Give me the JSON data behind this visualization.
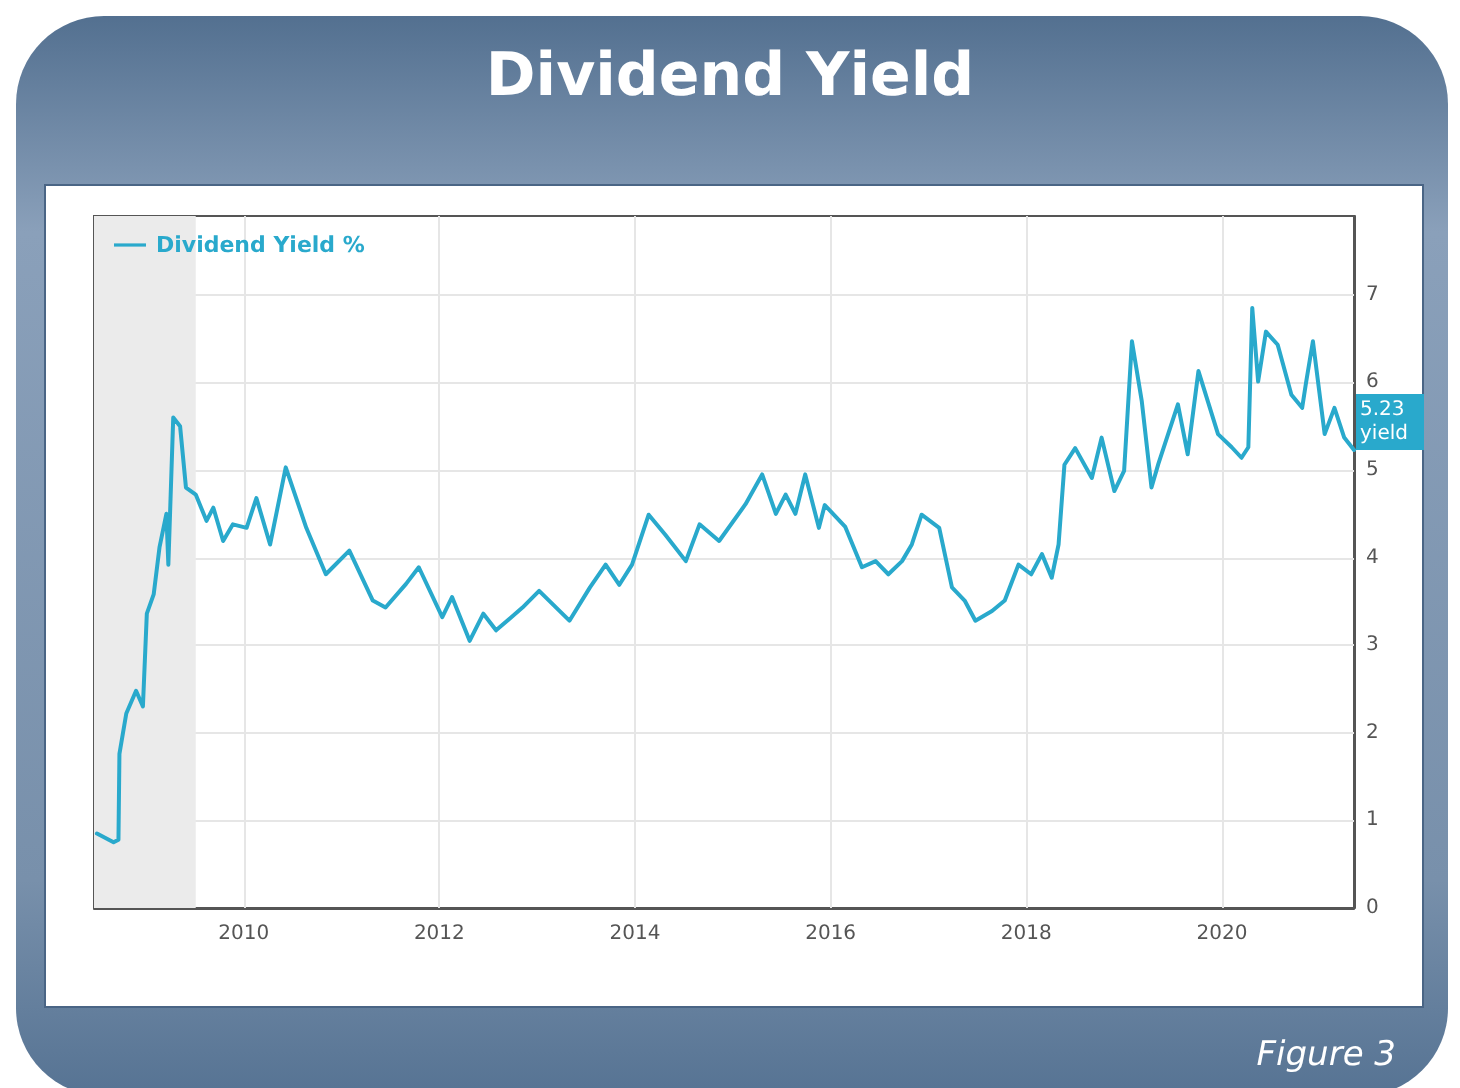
{
  "chart_data": {
    "type": "line",
    "title": "Dividend Yield",
    "annotations": [
      "Figure 3",
      {
        "text": "5.23 yield",
        "x": 2021.35,
        "y": 5.23
      }
    ],
    "xlim": [
      2008.47,
      2021.35
    ],
    "xticks": [
      2010,
      2012,
      2014,
      2016,
      2018,
      2020
    ],
    "ylim": [
      0,
      7.9
    ],
    "yticks": [
      0,
      1,
      2,
      3,
      4,
      5,
      6,
      7
    ],
    "grid": true,
    "legend": "top left",
    "marker": "none",
    "line_style": "solid",
    "bands": [
      {
        "axis": "x",
        "from": 2008.47,
        "to": 2009.51,
        "color": "#ebebeb"
      }
    ],
    "series": [
      {
        "name": "Dividend Yield %",
        "color": "#29a9cc",
        "x": [
          2008.5,
          2008.67,
          2008.72,
          2008.73,
          2008.8,
          2008.9,
          2008.97,
          2009.01,
          2009.08,
          2009.14,
          2009.21,
          2009.23,
          2009.28,
          2009.35,
          2009.41,
          2009.51,
          2009.62,
          2009.69,
          2009.79,
          2009.89,
          2010.03,
          2010.13,
          2010.27,
          2010.43,
          2010.64,
          2010.84,
          2011.08,
          2011.32,
          2011.45,
          2011.66,
          2011.79,
          2012.03,
          2012.13,
          2012.31,
          2012.45,
          2012.58,
          2012.85,
          2013.02,
          2013.33,
          2013.54,
          2013.7,
          2013.84,
          2013.97,
          2014.14,
          2014.31,
          2014.52,
          2014.66,
          2014.86,
          2015.13,
          2015.3,
          2015.44,
          2015.54,
          2015.64,
          2015.74,
          2015.88,
          2015.94,
          2016.15,
          2016.32,
          2016.46,
          2016.59,
          2016.73,
          2016.83,
          2016.93,
          2017.11,
          2017.24,
          2017.37,
          2017.48,
          2017.65,
          2017.78,
          2017.92,
          2018.05,
          2018.16,
          2018.26,
          2018.33,
          2018.39,
          2018.5,
          2018.67,
          2018.77,
          2018.9,
          2019,
          2019.08,
          2019.18,
          2019.28,
          2019.35,
          2019.55,
          2019.65,
          2019.76,
          2019.96,
          2020.1,
          2020.2,
          2020.27,
          2020.31,
          2020.37,
          2020.45,
          2020.57,
          2020.71,
          2020.82,
          2020.86,
          2020.93,
          2021.05,
          2021.15,
          2021.25,
          2021.35
        ],
        "values": [
          0.85,
          0.75,
          0.78,
          1.76,
          2.22,
          2.48,
          2.3,
          3.36,
          3.58,
          4.12,
          4.5,
          3.92,
          5.6,
          5.5,
          4.8,
          4.72,
          4.42,
          4.57,
          4.19,
          4.38,
          4.34,
          4.68,
          4.15,
          5.03,
          4.34,
          3.81,
          4.08,
          3.51,
          3.43,
          3.7,
          3.89,
          3.32,
          3.55,
          3.05,
          3.36,
          3.17,
          3.43,
          3.62,
          3.28,
          3.66,
          3.92,
          3.69,
          3.92,
          4.49,
          4.26,
          3.96,
          4.38,
          4.19,
          4.61,
          4.95,
          4.5,
          4.72,
          4.5,
          4.95,
          4.34,
          4.6,
          4.35,
          3.89,
          3.96,
          3.81,
          3.96,
          4.15,
          4.49,
          4.34,
          3.66,
          3.51,
          3.28,
          3.39,
          3.51,
          3.92,
          3.81,
          4.04,
          3.77,
          4.15,
          5.06,
          5.25,
          4.91,
          5.37,
          4.76,
          4.99,
          6.47,
          5.79,
          4.8,
          5.07,
          5.75,
          5.18,
          6.13,
          5.41,
          5.26,
          5.14,
          5.26,
          6.85,
          6.01,
          6.58,
          6.43,
          5.86,
          5.71,
          6,
          6.47,
          5.41,
          5.71,
          5.37,
          5.23
        ]
      }
    ]
  }
}
